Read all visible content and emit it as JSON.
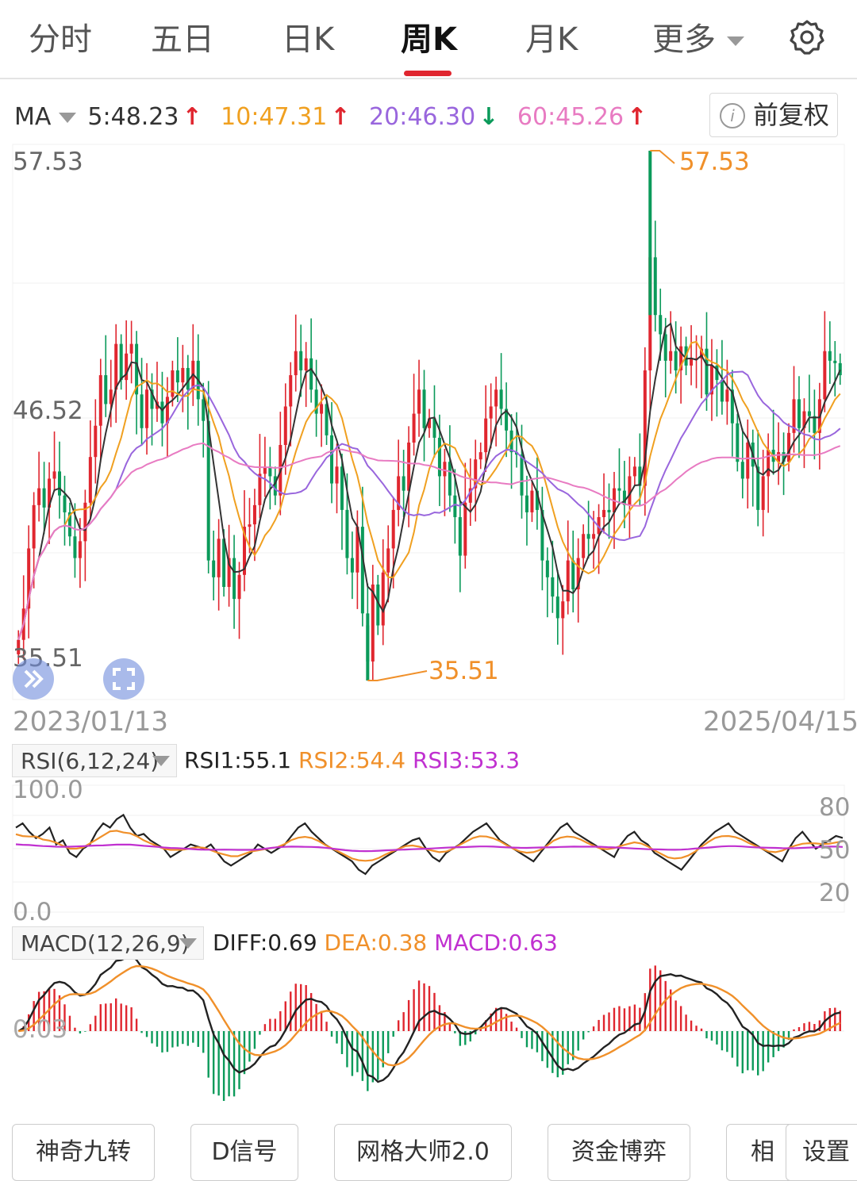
{
  "tabs": {
    "t1": "分时",
    "t2": "五日",
    "t3": "日K",
    "t4": "周K",
    "t5": "月K",
    "t6": "更多"
  },
  "ma": {
    "label": "MA",
    "ma5": "5:48.23",
    "ma10": "10:47.31",
    "ma20": "20:46.30",
    "ma60": "60:45.26",
    "arrow_up": "↑",
    "arrow_down": "↓"
  },
  "fuquan": "前复权",
  "price_axis": {
    "top": "57.53",
    "mid": "46.52",
    "bottom": "35.51"
  },
  "markers": {
    "high": "57.53",
    "low": "35.51"
  },
  "dates": {
    "start": "2023/01/13",
    "end": "2025/04/15"
  },
  "rsi": {
    "name": "RSI(6,12,24)",
    "v1": "RSI1:55.1",
    "v2": "RSI2:54.4",
    "v3": "RSI3:53.3",
    "top": "100.0",
    "bottom": "0.0",
    "l80": "80",
    "l50": "50",
    "l20": "20"
  },
  "macd": {
    "name": "MACD(12,26,9)",
    "diff": "DIFF:0.69",
    "dea": "DEA:0.38",
    "macd": "MACD:0.63",
    "zero": "0.03"
  },
  "bottom": {
    "b1": "神奇九转",
    "b2": "D信号",
    "b3": "网格大师2.0",
    "b4": "资金博弈",
    "b5": "相",
    "b6": "设置"
  },
  "colors": {
    "up": "#e0262f",
    "down": "#0b9a5a",
    "ma5": "#333333",
    "ma10": "#f0a020",
    "ma20": "#9966dd",
    "ma60": "#e87bc2",
    "accent": "#e0262f"
  },
  "chart_data": {
    "type": "candlestick",
    "title": "周K",
    "price_ylim": [
      35.51,
      57.53
    ],
    "date_range": [
      "2023/01/13",
      "2025/04/15"
    ],
    "close": [
      37.2,
      38.5,
      41.0,
      42.8,
      43.5,
      42.7,
      43.9,
      44.2,
      43.2,
      42.5,
      41.5,
      40.6,
      41.3,
      42.9,
      44.8,
      46.1,
      48.2,
      47.0,
      47.6,
      49.5,
      48.0,
      49.1,
      49.5,
      47.4,
      46.0,
      47.6,
      46.8,
      47.1,
      46.2,
      47.3,
      48.4,
      47.9,
      48.5,
      47.6,
      48.8,
      47.2,
      46.3,
      40.5,
      39.8,
      41.4,
      39.4,
      40.6,
      38.9,
      39.9,
      41.9,
      42.0,
      42.8,
      44.1,
      44.4,
      44.0,
      43.2,
      45.3,
      46.9,
      48.2,
      49.2,
      48.4,
      48.9,
      47.6,
      46.6,
      47.0,
      45.7,
      43.7,
      44.4,
      42.6,
      40.6,
      40.0,
      41.9,
      38.3,
      36.3,
      39.5,
      37.8,
      40.0,
      41.0,
      42.6,
      44.0,
      43.4,
      45.4,
      46.6,
      47.6,
      46.0,
      46.4,
      45.6,
      44.0,
      44.6,
      43.2,
      42.3,
      40.7,
      42.9,
      43.5,
      44.7,
      45.0,
      46.4,
      46.9,
      47.6,
      46.8,
      45.9,
      45.0,
      44.9,
      43.2,
      42.5,
      43.4,
      42.6,
      40.5,
      39.8,
      39.0,
      38.1,
      38.8,
      40.5,
      39.3,
      40.6,
      41.6,
      41.4,
      41.6,
      42.3,
      42.6,
      42.5,
      43.5,
      43.4,
      42.8,
      44.0,
      44.4,
      43.6,
      48.4,
      53.1,
      50.7,
      49.9,
      48.8,
      49.2,
      48.4,
      49.4,
      48.6,
      48.9,
      48.9,
      49.3,
      47.4,
      48.6,
      48.0,
      47.1,
      47.6,
      46.2,
      44.6,
      43.9,
      45.4,
      44.4,
      42.6,
      44.0,
      45.1,
      44.6,
      45.0,
      44.6,
      45.8,
      47.2,
      46.0,
      46.7,
      46.5,
      45.8,
      47.2,
      49.2,
      48.8,
      48.7,
      48.2
    ],
    "ma_latest": {
      "MA5": 48.23,
      "MA10": 47.31,
      "MA20": 46.3,
      "MA60": 45.26
    },
    "rsi": [
      60,
      62,
      58,
      55,
      57,
      60,
      52,
      54,
      48,
      46,
      50,
      52,
      58,
      62,
      60,
      64,
      66,
      60,
      56,
      57,
      54,
      52,
      50,
      46,
      48,
      50,
      52,
      51,
      50,
      52,
      48,
      44,
      42,
      44,
      46,
      48,
      52,
      50,
      48,
      50,
      52,
      56,
      60,
      62,
      58,
      55,
      52,
      50,
      48,
      46,
      44,
      40,
      38,
      42,
      44,
      46,
      48,
      50,
      52,
      54,
      55,
      50,
      46,
      44,
      48,
      50,
      52,
      55,
      58,
      60,
      62,
      58,
      54,
      52,
      50,
      48,
      46,
      44,
      48,
      52,
      56,
      60,
      62,
      58,
      56,
      54,
      52,
      50,
      48,
      46,
      52,
      56,
      58,
      54,
      52,
      48,
      46,
      44,
      42,
      40,
      44,
      48,
      52,
      55,
      58,
      60,
      62,
      58,
      56,
      54,
      52,
      50,
      48,
      46,
      44,
      50,
      55,
      58,
      54,
      50,
      52,
      54,
      56,
      55.1
    ],
    "rsi_ylim": [
      0,
      100
    ],
    "rsi_levels": [
      80,
      50,
      20
    ],
    "macd_latest": {
      "DIFF": 0.69,
      "DEA": 0.38,
      "MACD": 0.63
    }
  }
}
